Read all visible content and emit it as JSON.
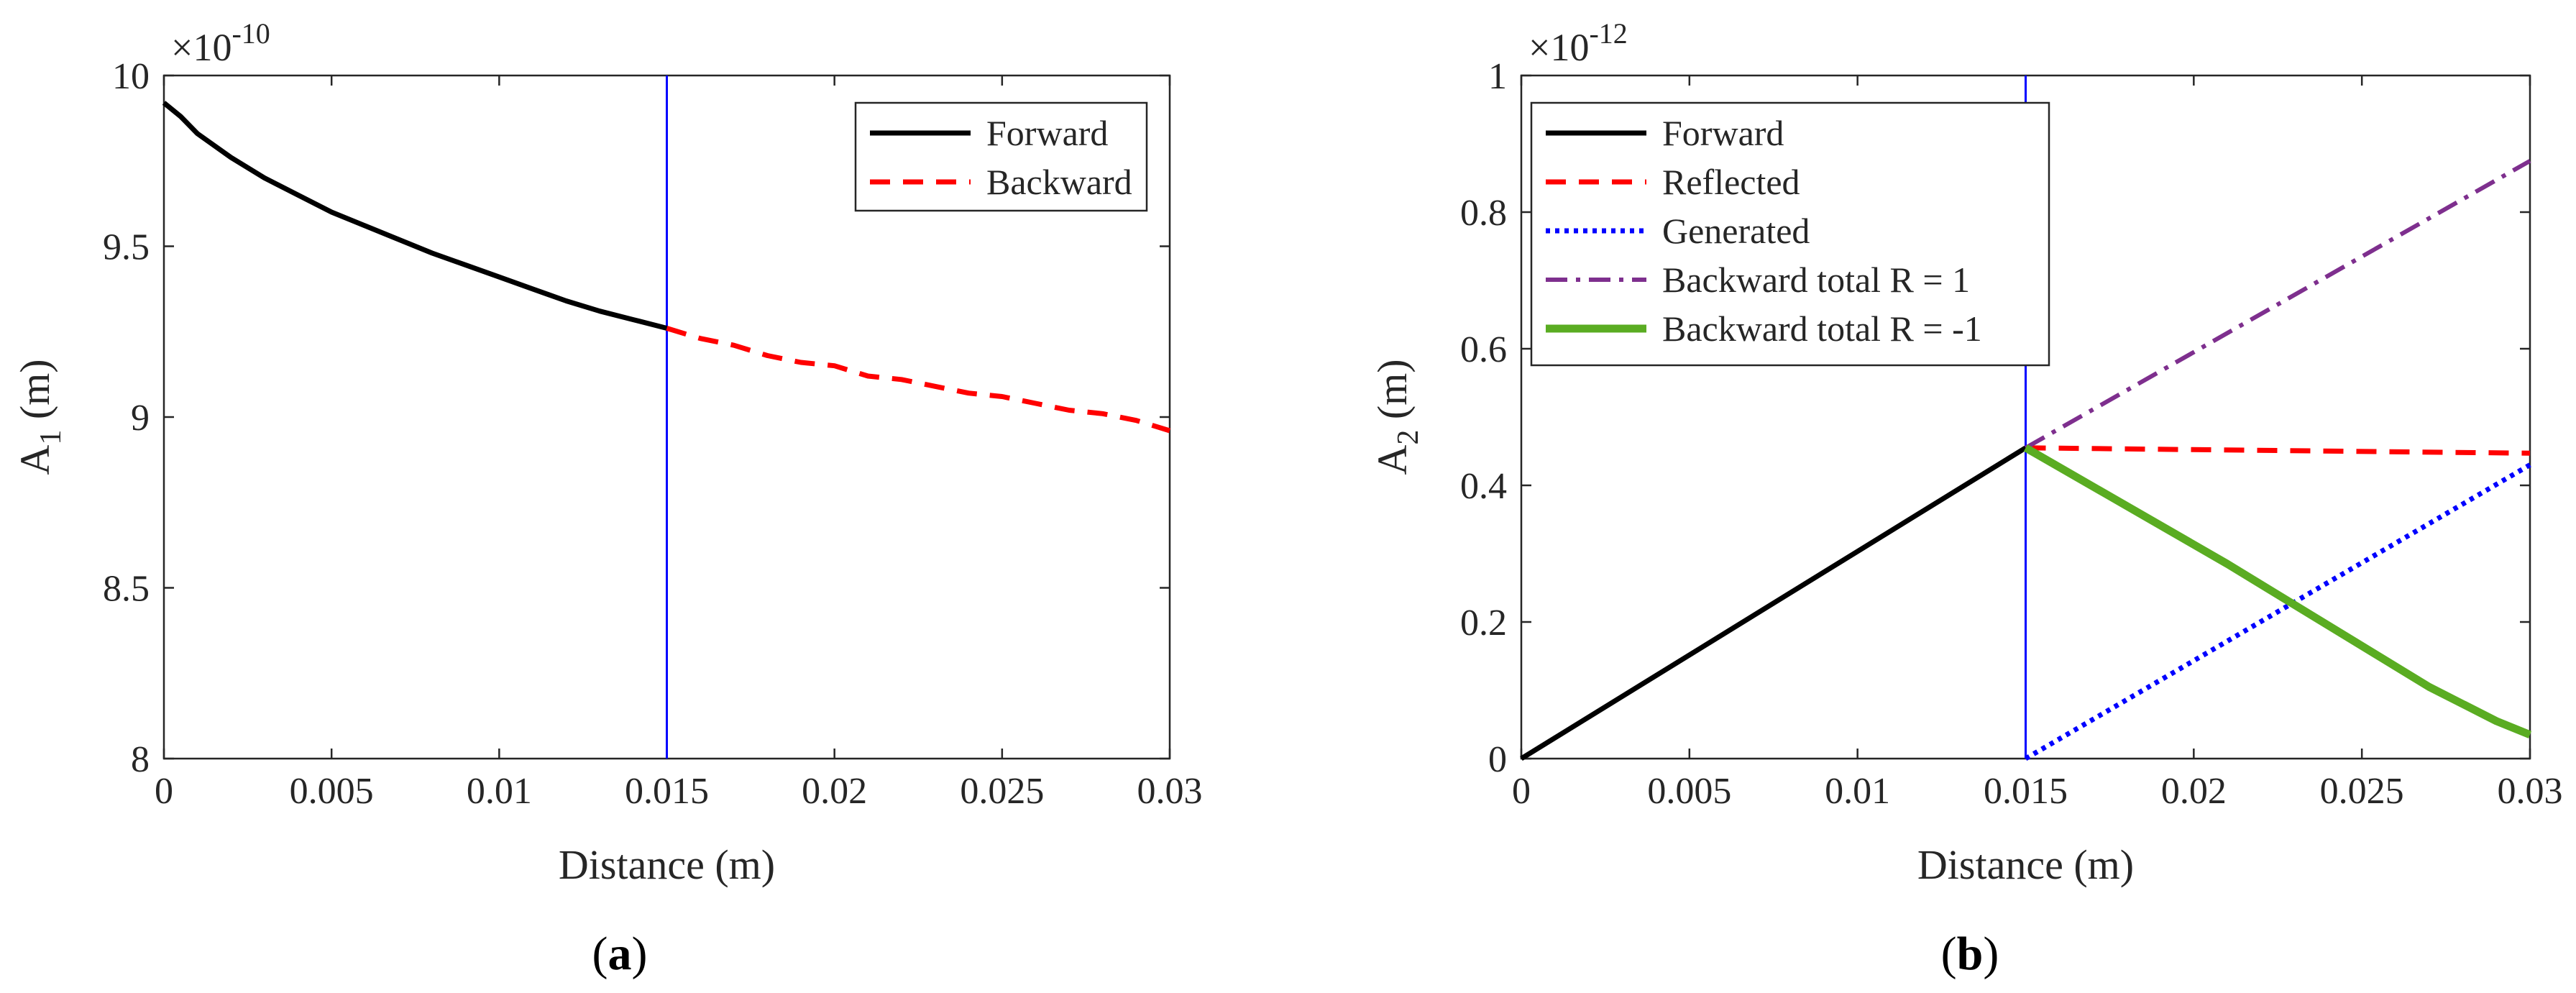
{
  "chart_data": [
    {
      "type": "line",
      "panel_label": "a",
      "xlabel": "Distance (m)",
      "ylabel": "A",
      "ylabel_sub": "1",
      "ylabel_unit": "(m)",
      "exponent_label": "×10",
      "exponent_power": "-10",
      "xlim": [
        0,
        0.03
      ],
      "ylim": [
        8,
        10
      ],
      "xticks": [
        0,
        0.005,
        0.01,
        0.015,
        0.02,
        0.025,
        0.03
      ],
      "xtick_labels": [
        "0",
        "0.005",
        "0.01",
        "0.015",
        "0.02",
        "0.025",
        "0.03"
      ],
      "yticks": [
        8,
        8.5,
        9,
        9.5,
        10
      ],
      "ytick_labels": [
        "8",
        "8.5",
        "9",
        "9.5",
        "10"
      ],
      "vline_x": 0.015,
      "vline_color": "#0000ff",
      "legend_position": "top-right",
      "series": [
        {
          "name": "Forward",
          "color": "#000000",
          "style": "solid",
          "x": [
            0,
            0.0005,
            0.001,
            0.002,
            0.003,
            0.004,
            0.005,
            0.006,
            0.007,
            0.008,
            0.009,
            0.01,
            0.011,
            0.012,
            0.013,
            0.014,
            0.015
          ],
          "y": [
            9.92,
            9.88,
            9.83,
            9.76,
            9.7,
            9.65,
            9.6,
            9.56,
            9.52,
            9.48,
            9.445,
            9.41,
            9.375,
            9.34,
            9.31,
            9.285,
            9.26
          ]
        },
        {
          "name": "Backward",
          "color": "#ff0000",
          "style": "dashed",
          "x": [
            0.015,
            0.016,
            0.017,
            0.018,
            0.019,
            0.02,
            0.021,
            0.022,
            0.023,
            0.024,
            0.025,
            0.026,
            0.027,
            0.028,
            0.029,
            0.03
          ],
          "y": [
            9.26,
            9.23,
            9.21,
            9.18,
            9.16,
            9.15,
            9.12,
            9.11,
            9.09,
            9.07,
            9.06,
            9.04,
            9.02,
            9.01,
            8.99,
            8.96
          ]
        }
      ]
    },
    {
      "type": "line",
      "panel_label": "b",
      "xlabel": "Distance (m)",
      "ylabel": "A",
      "ylabel_sub": "2",
      "ylabel_unit": "(m)",
      "exponent_label": "×10",
      "exponent_power": "-12",
      "xlim": [
        0,
        0.03
      ],
      "ylim": [
        0,
        1
      ],
      "xticks": [
        0,
        0.005,
        0.01,
        0.015,
        0.02,
        0.025,
        0.03
      ],
      "xtick_labels": [
        "0",
        "0.005",
        "0.01",
        "0.015",
        "0.02",
        "0.025",
        "0.03"
      ],
      "yticks": [
        0,
        0.2,
        0.4,
        0.6,
        0.8,
        1
      ],
      "ytick_labels": [
        "0",
        "0.2",
        "0.4",
        "0.6",
        "0.8",
        "1"
      ],
      "vline_x": 0.015,
      "vline_color": "#0000ff",
      "legend_position": "top-left",
      "series": [
        {
          "name": "Forward",
          "color": "#000000",
          "style": "solid",
          "x": [
            0,
            0.015
          ],
          "y": [
            0,
            0.455
          ]
        },
        {
          "name": "Reflected",
          "color": "#ff0000",
          "style": "dashed",
          "x": [
            0.015,
            0.03
          ],
          "y": [
            0.455,
            0.447
          ]
        },
        {
          "name": "Generated",
          "color": "#0000ff",
          "style": "dotted",
          "x": [
            0.015,
            0.03
          ],
          "y": [
            0,
            0.43
          ]
        },
        {
          "name": "Backward total R = 1",
          "color": "#7e2f8e",
          "style": "dashdot",
          "x": [
            0.015,
            0.03
          ],
          "y": [
            0.455,
            0.875
          ]
        },
        {
          "name": "Backward total R = -1",
          "color": "#5aac22",
          "style": "solid-thick",
          "x": [
            0.015,
            0.018,
            0.021,
            0.024,
            0.027,
            0.029,
            0.03
          ],
          "y": [
            0.455,
            0.37,
            0.285,
            0.195,
            0.105,
            0.055,
            0.035
          ]
        }
      ]
    }
  ]
}
